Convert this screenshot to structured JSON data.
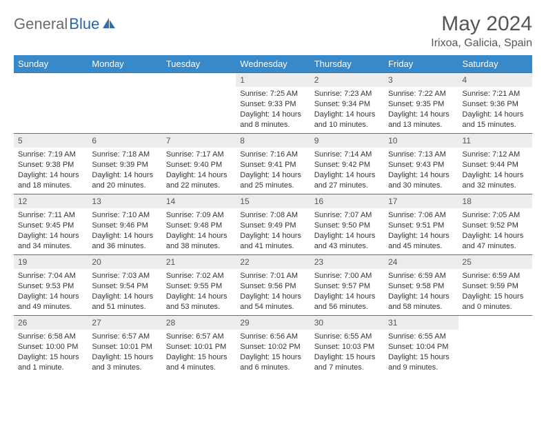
{
  "logo": {
    "part1": "General",
    "part2": "Blue"
  },
  "title": "May 2024",
  "location": "Irixoa, Galicia, Spain",
  "weekdays": [
    "Sunday",
    "Monday",
    "Tuesday",
    "Wednesday",
    "Thursday",
    "Friday",
    "Saturday"
  ],
  "colors": {
    "header_bg": "#3789ca",
    "header_text": "#ffffff",
    "row_border": "#3077b4",
    "daynum_bg": "#ececec",
    "text": "#333333",
    "title_text": "#555555"
  },
  "weeks": [
    [
      {
        "n": "",
        "sr": "",
        "ss": "",
        "dl": "",
        "empty": true
      },
      {
        "n": "",
        "sr": "",
        "ss": "",
        "dl": "",
        "empty": true
      },
      {
        "n": "",
        "sr": "",
        "ss": "",
        "dl": "",
        "empty": true
      },
      {
        "n": "1",
        "sr": "Sunrise: 7:25 AM",
        "ss": "Sunset: 9:33 PM",
        "dl": "Daylight: 14 hours and 8 minutes."
      },
      {
        "n": "2",
        "sr": "Sunrise: 7:23 AM",
        "ss": "Sunset: 9:34 PM",
        "dl": "Daylight: 14 hours and 10 minutes."
      },
      {
        "n": "3",
        "sr": "Sunrise: 7:22 AM",
        "ss": "Sunset: 9:35 PM",
        "dl": "Daylight: 14 hours and 13 minutes."
      },
      {
        "n": "4",
        "sr": "Sunrise: 7:21 AM",
        "ss": "Sunset: 9:36 PM",
        "dl": "Daylight: 14 hours and 15 minutes."
      }
    ],
    [
      {
        "n": "5",
        "sr": "Sunrise: 7:19 AM",
        "ss": "Sunset: 9:38 PM",
        "dl": "Daylight: 14 hours and 18 minutes."
      },
      {
        "n": "6",
        "sr": "Sunrise: 7:18 AM",
        "ss": "Sunset: 9:39 PM",
        "dl": "Daylight: 14 hours and 20 minutes."
      },
      {
        "n": "7",
        "sr": "Sunrise: 7:17 AM",
        "ss": "Sunset: 9:40 PM",
        "dl": "Daylight: 14 hours and 22 minutes."
      },
      {
        "n": "8",
        "sr": "Sunrise: 7:16 AM",
        "ss": "Sunset: 9:41 PM",
        "dl": "Daylight: 14 hours and 25 minutes."
      },
      {
        "n": "9",
        "sr": "Sunrise: 7:14 AM",
        "ss": "Sunset: 9:42 PM",
        "dl": "Daylight: 14 hours and 27 minutes."
      },
      {
        "n": "10",
        "sr": "Sunrise: 7:13 AM",
        "ss": "Sunset: 9:43 PM",
        "dl": "Daylight: 14 hours and 30 minutes."
      },
      {
        "n": "11",
        "sr": "Sunrise: 7:12 AM",
        "ss": "Sunset: 9:44 PM",
        "dl": "Daylight: 14 hours and 32 minutes."
      }
    ],
    [
      {
        "n": "12",
        "sr": "Sunrise: 7:11 AM",
        "ss": "Sunset: 9:45 PM",
        "dl": "Daylight: 14 hours and 34 minutes."
      },
      {
        "n": "13",
        "sr": "Sunrise: 7:10 AM",
        "ss": "Sunset: 9:46 PM",
        "dl": "Daylight: 14 hours and 36 minutes."
      },
      {
        "n": "14",
        "sr": "Sunrise: 7:09 AM",
        "ss": "Sunset: 9:48 PM",
        "dl": "Daylight: 14 hours and 38 minutes."
      },
      {
        "n": "15",
        "sr": "Sunrise: 7:08 AM",
        "ss": "Sunset: 9:49 PM",
        "dl": "Daylight: 14 hours and 41 minutes."
      },
      {
        "n": "16",
        "sr": "Sunrise: 7:07 AM",
        "ss": "Sunset: 9:50 PM",
        "dl": "Daylight: 14 hours and 43 minutes."
      },
      {
        "n": "17",
        "sr": "Sunrise: 7:06 AM",
        "ss": "Sunset: 9:51 PM",
        "dl": "Daylight: 14 hours and 45 minutes."
      },
      {
        "n": "18",
        "sr": "Sunrise: 7:05 AM",
        "ss": "Sunset: 9:52 PM",
        "dl": "Daylight: 14 hours and 47 minutes."
      }
    ],
    [
      {
        "n": "19",
        "sr": "Sunrise: 7:04 AM",
        "ss": "Sunset: 9:53 PM",
        "dl": "Daylight: 14 hours and 49 minutes."
      },
      {
        "n": "20",
        "sr": "Sunrise: 7:03 AM",
        "ss": "Sunset: 9:54 PM",
        "dl": "Daylight: 14 hours and 51 minutes."
      },
      {
        "n": "21",
        "sr": "Sunrise: 7:02 AM",
        "ss": "Sunset: 9:55 PM",
        "dl": "Daylight: 14 hours and 53 minutes."
      },
      {
        "n": "22",
        "sr": "Sunrise: 7:01 AM",
        "ss": "Sunset: 9:56 PM",
        "dl": "Daylight: 14 hours and 54 minutes."
      },
      {
        "n": "23",
        "sr": "Sunrise: 7:00 AM",
        "ss": "Sunset: 9:57 PM",
        "dl": "Daylight: 14 hours and 56 minutes."
      },
      {
        "n": "24",
        "sr": "Sunrise: 6:59 AM",
        "ss": "Sunset: 9:58 PM",
        "dl": "Daylight: 14 hours and 58 minutes."
      },
      {
        "n": "25",
        "sr": "Sunrise: 6:59 AM",
        "ss": "Sunset: 9:59 PM",
        "dl": "Daylight: 15 hours and 0 minutes."
      }
    ],
    [
      {
        "n": "26",
        "sr": "Sunrise: 6:58 AM",
        "ss": "Sunset: 10:00 PM",
        "dl": "Daylight: 15 hours and 1 minute."
      },
      {
        "n": "27",
        "sr": "Sunrise: 6:57 AM",
        "ss": "Sunset: 10:01 PM",
        "dl": "Daylight: 15 hours and 3 minutes."
      },
      {
        "n": "28",
        "sr": "Sunrise: 6:57 AM",
        "ss": "Sunset: 10:01 PM",
        "dl": "Daylight: 15 hours and 4 minutes."
      },
      {
        "n": "29",
        "sr": "Sunrise: 6:56 AM",
        "ss": "Sunset: 10:02 PM",
        "dl": "Daylight: 15 hours and 6 minutes."
      },
      {
        "n": "30",
        "sr": "Sunrise: 6:55 AM",
        "ss": "Sunset: 10:03 PM",
        "dl": "Daylight: 15 hours and 7 minutes."
      },
      {
        "n": "31",
        "sr": "Sunrise: 6:55 AM",
        "ss": "Sunset: 10:04 PM",
        "dl": "Daylight: 15 hours and 9 minutes."
      },
      {
        "n": "",
        "sr": "",
        "ss": "",
        "dl": "",
        "empty": true
      }
    ]
  ]
}
